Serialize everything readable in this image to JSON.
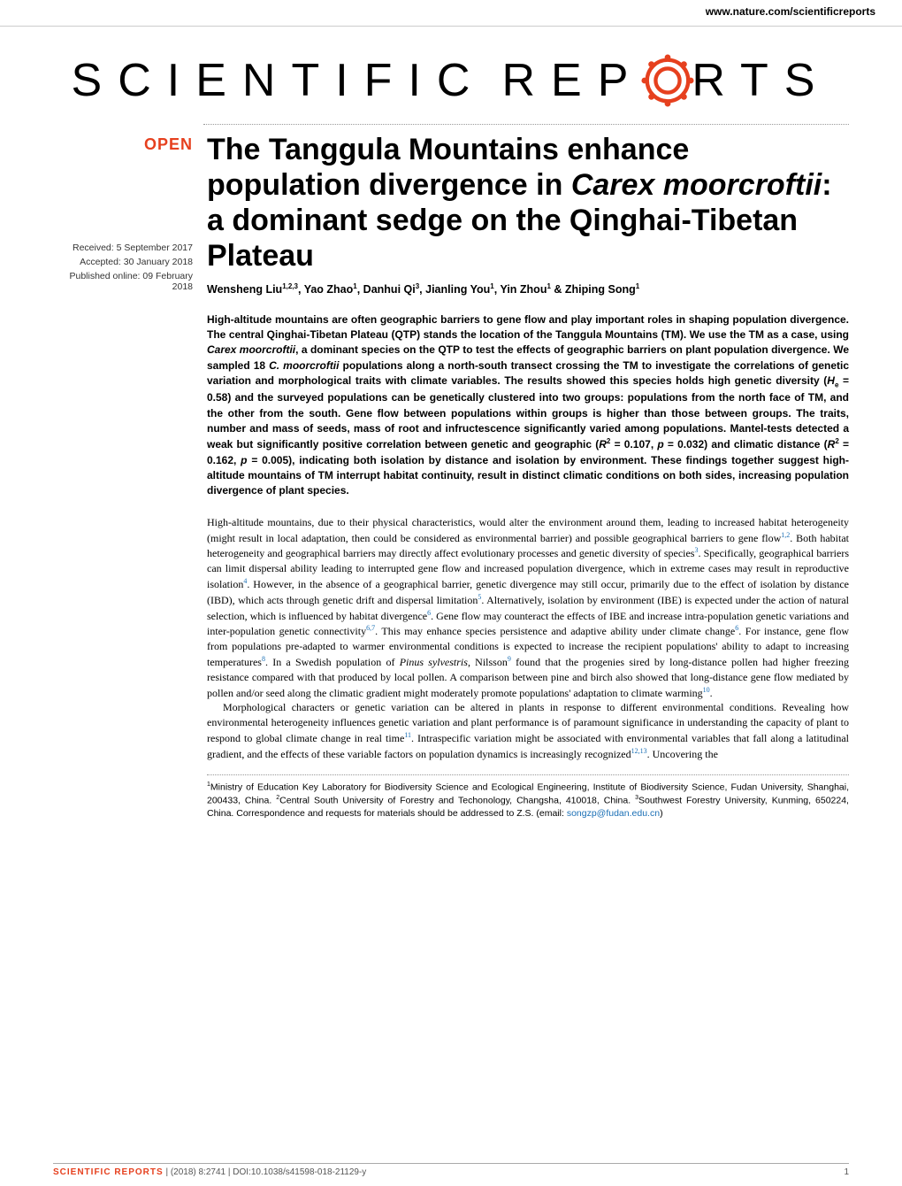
{
  "header": {
    "url": "www.nature.com/scientificreports"
  },
  "logo": {
    "text_left": "SCIENTIFIC",
    "text_right": "REP",
    "text_end": "RTS",
    "gear_color": "#e6401e"
  },
  "badge": {
    "open": "OPEN"
  },
  "meta": {
    "received": "Received: 5 September 2017",
    "accepted": "Accepted: 30 January 2018",
    "published": "Published online: 09 February 2018"
  },
  "title": {
    "line": "The Tanggula Mountains enhance population divergence in <em>Carex moorcroftii</em>: a dominant sedge on the Qinghai-Tibetan Plateau"
  },
  "authors": {
    "html": "Wensheng Liu<sup>1,2,3</sup>, Yao Zhao<sup>1</sup>, Danhui Qi<sup>3</sup>, Jianling You<sup>1</sup>, Yin Zhou<sup>1</sup> & Zhiping Song<sup>1</sup>"
  },
  "abstract": {
    "html": "High-altitude mountains are often geographic barriers to gene flow and play important roles in shaping population divergence. The central Qinghai-Tibetan Plateau (QTP) stands the location of the Tanggula Mountains (TM). We use the TM as a case, using <em>Carex moorcroftii</em>, a dominant species on the QTP to test the effects of geographic barriers on plant population divergence. We sampled 18 <em>C. moorcroftii</em> populations along a north-south transect crossing the TM to investigate the correlations of genetic variation and morphological traits with climate variables. The results showed this species holds high genetic diversity (<em>H</em><sub>e</sub> = 0.58) and the surveyed populations can be genetically clustered into two groups: populations from the north face of TM, and the other from the south. Gene flow between populations within groups is higher than those between groups. The traits, number and mass of seeds, mass of root and infructescence significantly varied among populations. Mantel-tests detected a weak but significantly positive correlation between genetic and geographic (<em>R</em><sup>2</sup> = 0.107, <em>p</em> = 0.032) and climatic distance (<em>R</em><sup>2</sup> = 0.162, <em>p</em> = 0.005), indicating both isolation by distance and isolation by environment. These findings together suggest high-altitude mountains of TM interrupt habitat continuity, result in distinct climatic conditions on both sides, increasing population divergence of plant species."
  },
  "body": {
    "p1": "High-altitude mountains, due to their physical characteristics, would alter the environment around them, leading to increased habitat heterogeneity (might result in local adaptation, then could be considered as environmental barrier) and possible geographical barriers to gene flow<sup>1,2</sup>. Both habitat heterogeneity and geographical barriers may directly affect evolutionary processes and genetic diversity of species<sup>3</sup>. Specifically, geographical barriers can limit dispersal ability leading to interrupted gene flow and increased population divergence, which in extreme cases may result in reproductive isolation<sup>4</sup>. However, in the absence of a geographical barrier, genetic divergence may still occur, primarily due to the effect of isolation by distance (IBD), which acts through genetic drift and dispersal limitation<sup>5</sup>. Alternatively, isolation by environment (IBE) is expected under the action of natural selection, which is influenced by habitat divergence<sup>6</sup>. Gene flow may counteract the effects of IBE and increase intra-population genetic variations and inter-population genetic connectivity<sup>6,7</sup>. This may enhance species persistence and adaptive ability under climate change<sup>6</sup>. For instance, gene flow from populations pre-adapted to warmer environmental conditions is expected to increase the recipient populations' ability to adapt to increasing temperatures<sup>8</sup>. In a Swedish population of <em>Pinus sylvestris</em>, Nilsson<sup>9</sup> found that the progenies sired by long-distance pollen had higher freezing resistance compared with that produced by local pollen. A comparison between pine and birch also showed that long-distance gene flow mediated by pollen and/or seed along the climatic gradient might moderately promote populations' adaptation to climate warming<sup>10</sup>.",
    "p2": "Morphological characters or genetic variation can be altered in plants in response to different environmental conditions. Revealing how environmental heterogeneity influences genetic variation and plant performance is of paramount significance in understanding the capacity of plant to respond to global climate change in real time<sup>11</sup>. Intraspecific variation might be associated with environmental variables that fall along a latitudinal gradient, and the effects of these variable factors on population dynamics is increasingly recognized<sup>12,13</sup>. Uncovering the"
  },
  "affiliations": {
    "html": "<sup>1</sup>Ministry of Education Key Laboratory for Biodiversity Science and Ecological Engineering, Institute of Biodiversity Science, Fudan University, Shanghai, 200433, China. <sup>2</sup>Central South University of Forestry and Techonology, Changsha, 410018, China. <sup>3</sup>Southwest Forestry University, Kunming, 650224, China. Correspondence and requests for materials should be addressed to Z.S. (email: <span class=\"email\">songzp@fudan.edu.cn</span>)"
  },
  "footer": {
    "journal": "SCIENTIFIC REPORTS",
    "citation": " | (2018) 8:2741  | DOI:10.1038/s41598-018-21129-y",
    "page": "1"
  },
  "colors": {
    "accent": "#e6401e",
    "link": "#1a6fb5",
    "text": "#000000",
    "background": "#ffffff"
  }
}
